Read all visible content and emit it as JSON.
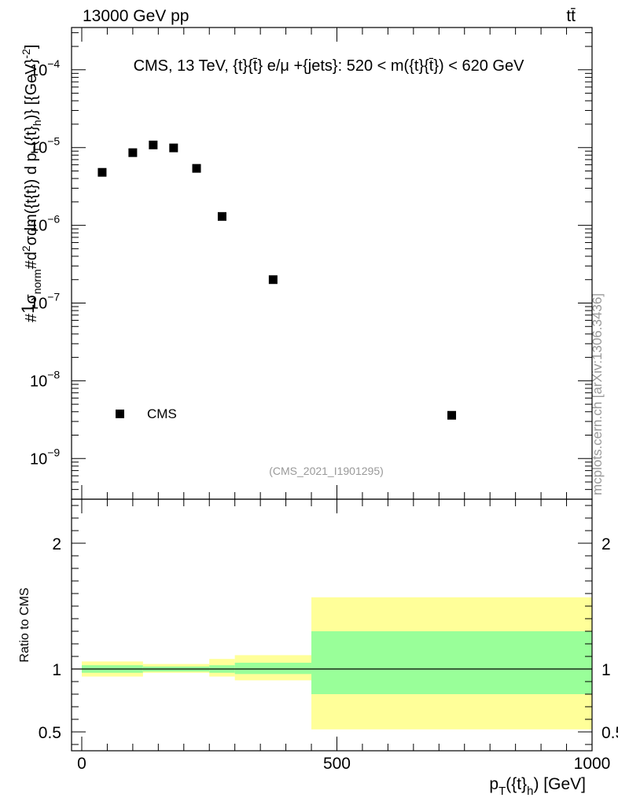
{
  "header": {
    "left_label": "13000 GeV pp",
    "right_label": "tt̄",
    "side_label": "mcplots.cern.ch [arXiv:1306.3436]"
  },
  "chart_data": [
    {
      "type": "scatter",
      "title": "CMS, 13 TeV, {t}{t̄} e/μ +{jets}: 520 < m({t}{t̄}) < 620 GeV",
      "ylabel": "#1/σnorm #d²σ/dm({t} d pT({t}h)} [{GeV}⁻²]",
      "ylabel_parts": {
        "hash1": "#",
        "one": "1",
        "sigma": "σ",
        "norm": "norm",
        "hash2": "#",
        "d2": "d",
        "d2sup": "2",
        "sigma2": "σ",
        "denom": "dm({t",
        "rest": "{t}) d p",
        "T": "T",
        "rest2": "({t}",
        "h": "h",
        "rest3": ")} [{GeV}",
        "exp": "-2",
        "close": "]"
      },
      "yscale": "log",
      "ylim": [
        3e-10,
        0.00035
      ],
      "xlim": [
        -20,
        1000
      ],
      "y_ticks": [
        {
          "value": 1e-09,
          "mant": "10",
          "exp": "−9"
        },
        {
          "value": 1e-08,
          "mant": "10",
          "exp": "−8"
        },
        {
          "value": 1e-07,
          "mant": "10",
          "exp": "−7"
        },
        {
          "value": 1e-06,
          "mant": "10",
          "exp": "−6"
        },
        {
          "value": 1e-05,
          "mant": "10",
          "exp": "−5"
        },
        {
          "value": 0.0001,
          "mant": "10",
          "exp": "−4"
        }
      ],
      "series": [
        {
          "name": "CMS",
          "x": [
            40,
            100,
            140,
            180,
            225,
            275,
            375,
            725
          ],
          "y": [
            4.8e-06,
            8.6e-06,
            1.08e-05,
            9.9e-06,
            5.4e-06,
            1.3e-06,
            2e-07,
            3.6e-09
          ]
        }
      ],
      "legend": {
        "entry": "CMS",
        "placement": "bottom-left"
      },
      "watermark": "(CMS_2021_I1901295)"
    },
    {
      "type": "area",
      "ylabel": "Ratio to CMS",
      "xlabel_parts": {
        "p": "p",
        "T": "T",
        "mid": "({t}",
        "h": "h",
        "end": ") [GeV]"
      },
      "xlim": [
        -20,
        1000
      ],
      "ylim": [
        0.35,
        2.35
      ],
      "x_ticks": [
        0,
        500,
        1000
      ],
      "y_ticks": [
        0.5,
        1,
        2
      ],
      "reference_line": 1,
      "bins": [
        {
          "x0": 0,
          "x1": 120,
          "inner_lo": 0.97,
          "inner_hi": 1.03,
          "outer_lo": 0.94,
          "outer_hi": 1.06
        },
        {
          "x0": 120,
          "x1": 250,
          "inner_lo": 0.98,
          "inner_hi": 1.02,
          "outer_lo": 0.97,
          "outer_hi": 1.04
        },
        {
          "x0": 250,
          "x1": 300,
          "inner_lo": 0.97,
          "inner_hi": 1.03,
          "outer_lo": 0.94,
          "outer_hi": 1.08
        },
        {
          "x0": 300,
          "x1": 450,
          "inner_lo": 0.96,
          "inner_hi": 1.05,
          "outer_lo": 0.91,
          "outer_hi": 1.11
        },
        {
          "x0": 450,
          "x1": 1000,
          "inner_lo": 0.8,
          "inner_hi": 1.3,
          "outer_lo": 0.52,
          "outer_hi": 1.57
        }
      ],
      "colors": {
        "inner": "#99ff99",
        "outer": "#ffff99"
      }
    }
  ]
}
